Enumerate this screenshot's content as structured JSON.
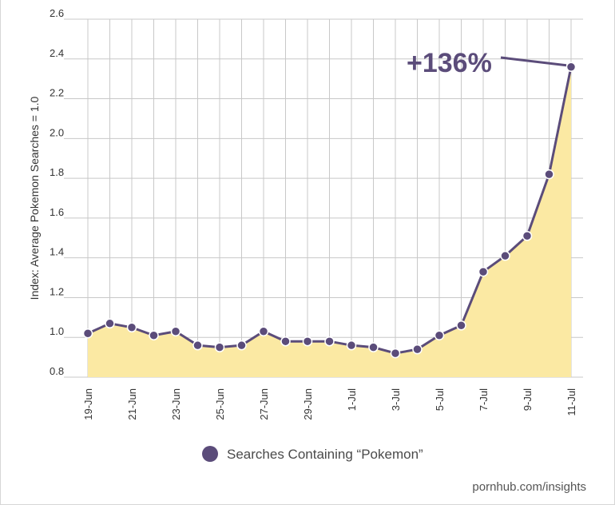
{
  "chart_data": {
    "type": "area",
    "title": "",
    "xlabel": "",
    "ylabel": "Index: Average Pokemon Searches = 1.0",
    "ylim": [
      0.8,
      2.6
    ],
    "yticks": [
      "0.8",
      "1.0",
      "1.2",
      "1.4",
      "1.6",
      "1.8",
      "2.0",
      "2.2",
      "2.4",
      "2.6"
    ],
    "x_tick_labels": [
      "19-Jun",
      "21-Jun",
      "23-Jun",
      "25-Jun",
      "27-Jun",
      "29-Jun",
      "1-Jul",
      "3-Jul",
      "5-Jul",
      "7-Jul",
      "9-Jul",
      "11-Jul"
    ],
    "series": [
      {
        "name": "Searches Containing “Pokemon”",
        "categories": [
          "19-Jun",
          "20-Jun",
          "21-Jun",
          "22-Jun",
          "23-Jun",
          "24-Jun",
          "25-Jun",
          "26-Jun",
          "27-Jun",
          "28-Jun",
          "29-Jun",
          "30-Jun",
          "1-Jul",
          "2-Jul",
          "3-Jul",
          "4-Jul",
          "5-Jul",
          "6-Jul",
          "7-Jul",
          "8-Jul",
          "9-Jul",
          "10-Jul",
          "11-Jul"
        ],
        "values": [
          1.02,
          1.07,
          1.05,
          1.01,
          1.03,
          0.96,
          0.95,
          0.96,
          1.03,
          0.98,
          0.98,
          0.98,
          0.96,
          0.95,
          0.92,
          0.94,
          1.01,
          1.06,
          1.33,
          1.41,
          1.51,
          1.82,
          2.36
        ]
      }
    ],
    "annotation": "+136%",
    "legend": "bottom-center"
  },
  "colors": {
    "line": "#5b4c7a",
    "fill": "#fbe9a3",
    "grid": "#c8c8c8"
  },
  "source": "pornhub.com/insights"
}
